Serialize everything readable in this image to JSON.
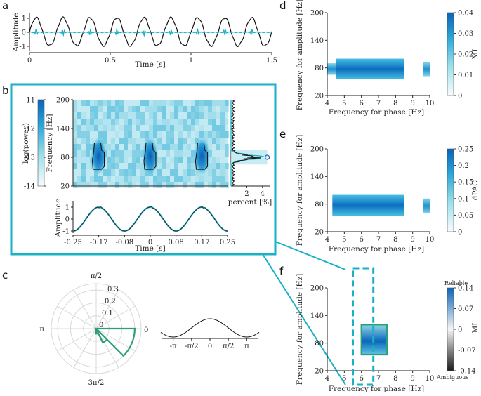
{
  "panel_letters": [
    "a",
    "b",
    "c",
    "d",
    "e",
    "f"
  ],
  "chart_data": [
    {
      "type": "line",
      "panel": "a",
      "xlabel": "Time [s]",
      "ylabel": "Amplitude",
      "xlim": [
        0,
        1.5
      ],
      "ylim": [
        -1.2,
        1.2
      ],
      "xticks": [
        "0",
        "0.5",
        "1",
        "1.5"
      ],
      "yticks": [
        "1",
        "0",
        "-1"
      ],
      "signal": {
        "frequency_hz": 6,
        "amplitude": 1
      },
      "colors": {
        "raw": "#111111",
        "filtered": "#1fb3c8"
      }
    },
    {
      "type": "heatmap",
      "panel": "b-tf",
      "ylabel": "Frequency [Hz]",
      "colorbar_label": "log(power)",
      "ylim": [
        20,
        200
      ],
      "yticks": [
        "200",
        "140",
        "80",
        "20"
      ],
      "colorbar_ticks": [
        "-11",
        "-12",
        "-13",
        "-14"
      ],
      "colorbar_range": [
        -14,
        -11
      ],
      "burst_centers_s": [
        -0.167,
        0.0,
        0.167
      ],
      "burst_frequency_hz": [
        55,
        110
      ]
    },
    {
      "type": "line",
      "panel": "b-spectrum",
      "xlabel": "percent [%]",
      "xticks": [
        "2",
        "4"
      ],
      "xlim": [
        0,
        5
      ],
      "peak_frequency_hz": 80,
      "peak_percent": 4.6
    },
    {
      "type": "line",
      "panel": "b-phase",
      "xlabel": "Time [s]",
      "ylabel": "Amplitude",
      "xlim": [
        -0.25,
        0.25
      ],
      "ylim": [
        -1.2,
        1.2
      ],
      "xticks": [
        "-0.25",
        "-0.17",
        "-0.08",
        "0",
        "0.08",
        "0.17",
        "0.25"
      ],
      "yticks": [
        "1",
        "0",
        "-1"
      ],
      "frequency_hz": 6
    },
    {
      "type": "polar",
      "panel": "c",
      "angle_labels": [
        "π/2",
        "π",
        "0",
        "3π/2"
      ],
      "radial_ticks": [
        "0.3",
        "0.2",
        "0.1",
        "0"
      ],
      "rmax": 0.35,
      "bars": [
        {
          "start_deg": 0,
          "end_deg": 45,
          "value": 0.3
        },
        {
          "start_deg": 45,
          "end_deg": 65,
          "value": 0.12
        },
        {
          "start_deg": 65,
          "end_deg": 90,
          "value": 0.04
        }
      ],
      "color": "#2e9e7a"
    },
    {
      "type": "line",
      "panel": "c-wave",
      "xticks": [
        "-π",
        "-π/2",
        "0",
        "π/2",
        "π"
      ],
      "xlim": [
        -4.2,
        4.2
      ]
    },
    {
      "type": "heatmap",
      "panel": "d",
      "xlabel": "Frequency for phase [Hz]",
      "ylabel": "Frequency for amplitude [Hz]",
      "colorbar_label": "MI",
      "xlim": [
        4,
        10
      ],
      "ylim": [
        20,
        200
      ],
      "xticks": [
        "4",
        "5",
        "6",
        "7",
        "8",
        "9",
        "10"
      ],
      "yticks": [
        "200",
        "140",
        "80",
        "20"
      ],
      "colorbar_ticks": [
        "0.04",
        "0.03",
        "0.02",
        "0.01",
        "0"
      ],
      "colorbar_range": [
        0,
        0.04
      ],
      "blocks": [
        {
          "x": [
            4,
            4.5
          ],
          "y": [
            65,
            90
          ],
          "value": 0.015
        },
        {
          "x": [
            4.5,
            8.5
          ],
          "y": [
            55,
            100
          ],
          "value": 0.032
        },
        {
          "x": [
            9.6,
            10
          ],
          "y": [
            62,
            92
          ],
          "value": 0.018
        }
      ]
    },
    {
      "type": "heatmap",
      "panel": "e",
      "xlabel": "Frequency for phase [Hz]",
      "ylabel": "Frequency for amplitude [Hz]",
      "colorbar_label": "dPAC",
      "xlim": [
        4,
        10
      ],
      "ylim": [
        20,
        200
      ],
      "xticks": [
        "4",
        "5",
        "6",
        "7",
        "8",
        "9",
        "10"
      ],
      "yticks": [
        "200",
        "140",
        "80",
        "20"
      ],
      "colorbar_ticks": [
        "0.25",
        "0.2",
        "0.15",
        "0.1",
        "0.05",
        "0"
      ],
      "colorbar_range": [
        0,
        0.25
      ],
      "blocks": [
        {
          "x": [
            4.3,
            8.5
          ],
          "y": [
            55,
            100
          ],
          "value": 0.22
        },
        {
          "x": [
            9.6,
            10
          ],
          "y": [
            60,
            92
          ],
          "value": 0.2
        }
      ]
    },
    {
      "type": "heatmap",
      "panel": "f",
      "xlabel": "Frequency for phase [Hz]",
      "ylabel": "Frequency for amplitude [Hz]",
      "colorbar_label": "MI",
      "xlim": [
        4,
        10
      ],
      "ylim": [
        20,
        200
      ],
      "xticks": [
        "4",
        "5",
        "6",
        "7",
        "8",
        "9",
        "10"
      ],
      "yticks": [
        "200",
        "140",
        "80",
        "20"
      ],
      "colorbar_ticks": [
        "0.14",
        "0.07",
        "0",
        "-0.07",
        "-0.14"
      ],
      "colorbar_range": [
        -0.14,
        0.14
      ],
      "colorbar_top_label": "Reliable",
      "colorbar_bottom_label": "Ambiguous",
      "blocks": [
        {
          "x": [
            6,
            7.5
          ],
          "y": [
            55,
            120
          ],
          "value": 0.1
        }
      ],
      "highlight_x": [
        5.5,
        6.7
      ]
    }
  ]
}
